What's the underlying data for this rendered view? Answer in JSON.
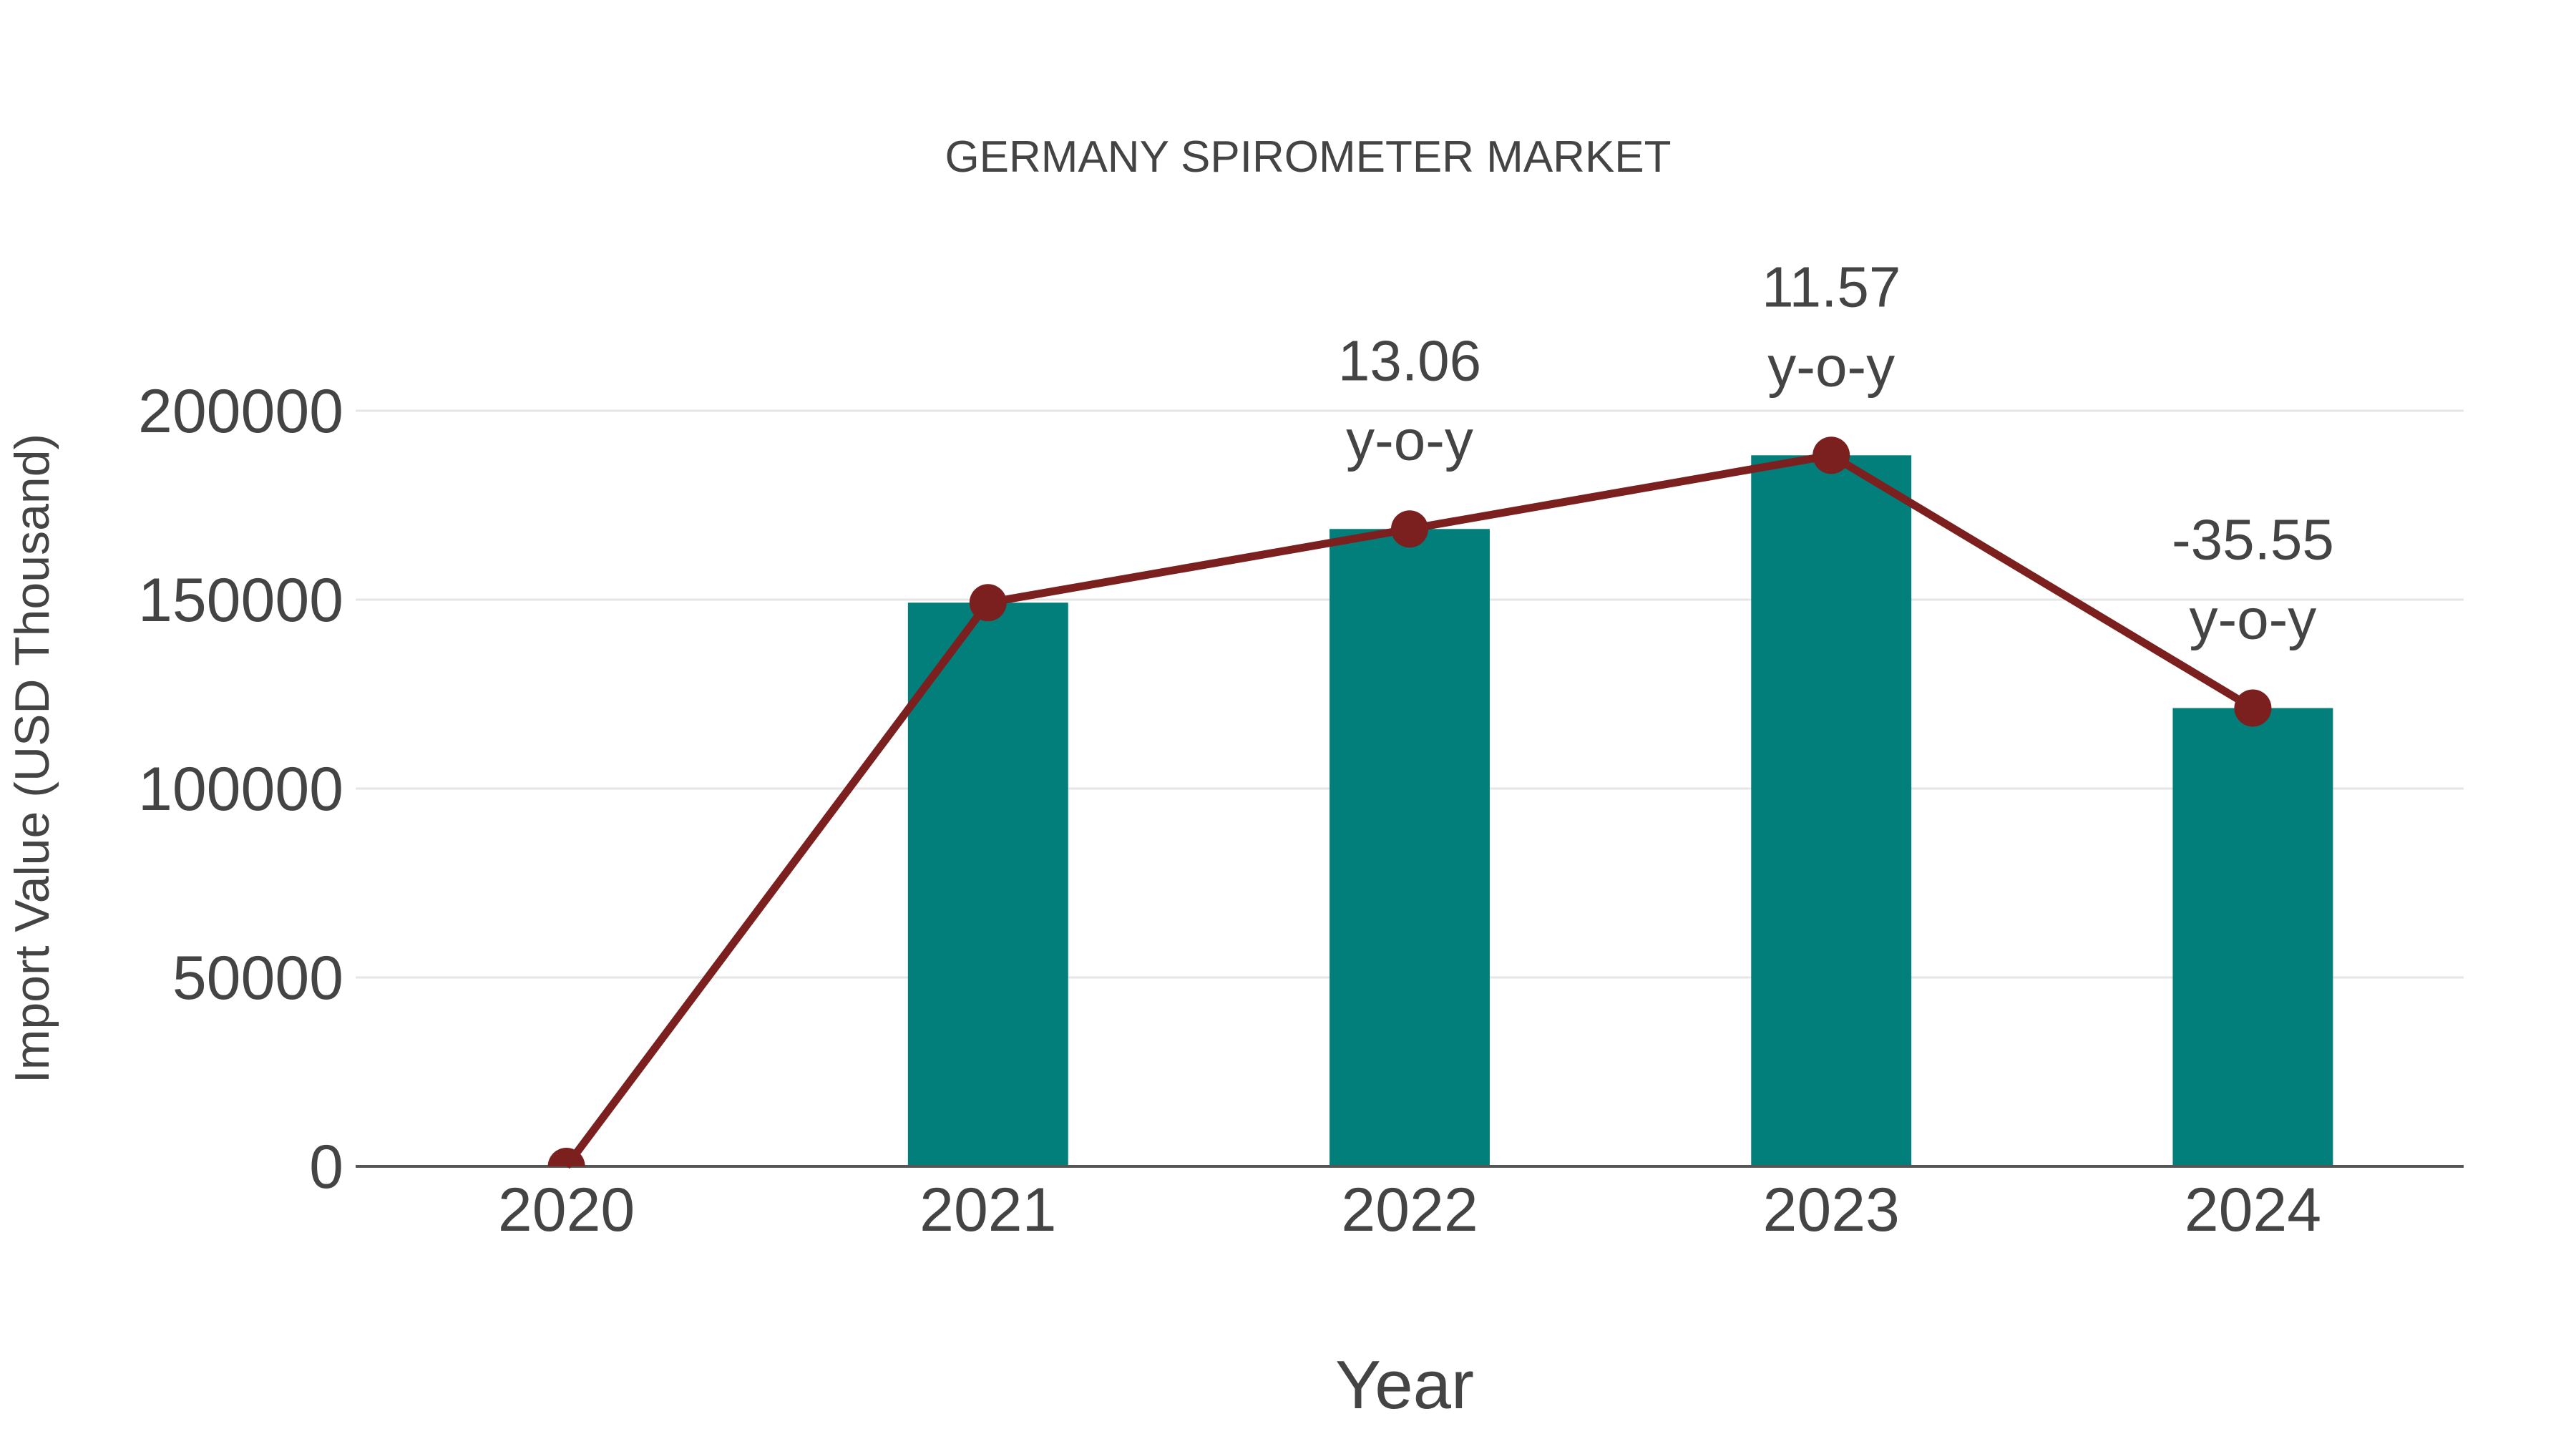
{
  "chart_data": {
    "type": "bar",
    "title": "GERMANY SPIROMETER MARKET",
    "xlabel": "Year",
    "ylabel": "Import Value (USD Thousand)",
    "categories": [
      "2020",
      "2021",
      "2022",
      "2023",
      "2024"
    ],
    "series": [
      {
        "name": "Import Value",
        "type": "bar",
        "color": "#027F7B",
        "values": [
          0,
          149200,
          168700,
          188200,
          121300
        ]
      },
      {
        "name": "Import Value Trend",
        "type": "line",
        "color": "#7B1F1F",
        "values": [
          0,
          149200,
          168700,
          188200,
          121300
        ]
      }
    ],
    "annotations": [
      {
        "category": "2022",
        "value": "13.06",
        "suffix": "y-o-y"
      },
      {
        "category": "2023",
        "value": "11.57",
        "suffix": "y-o-y"
      },
      {
        "category": "2024",
        "value": "-35.55",
        "suffix": "y-o-y"
      }
    ],
    "yticks": [
      "0",
      "50000",
      "100000",
      "150000",
      "200000"
    ],
    "ylim": [
      0,
      200000
    ],
    "grid": true,
    "legend": "none"
  },
  "colors": {
    "bar": "#027F7B",
    "line": "#7B1F1F",
    "text": "#444444",
    "grid": "#E6E6E6"
  }
}
